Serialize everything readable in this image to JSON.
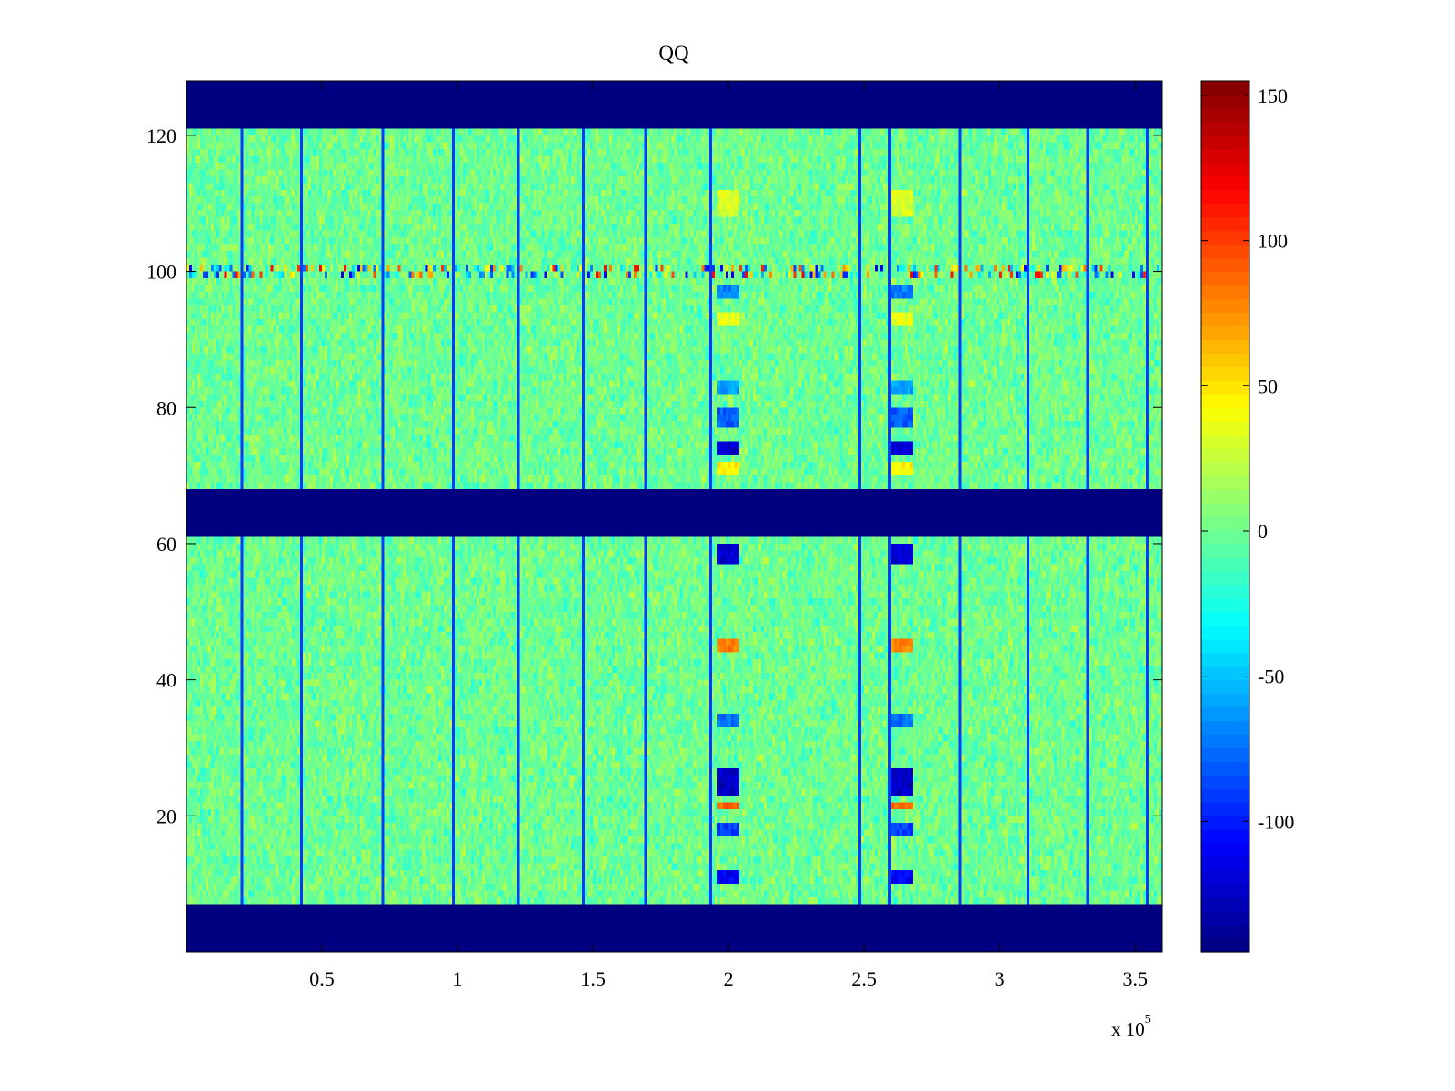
{
  "chart_data": {
    "type": "heatmap",
    "title": "QQ",
    "xlabel": "",
    "ylabel": "",
    "x_multiplier_label": "x 10",
    "x_multiplier_exponent": "5",
    "xlim": [
      0,
      360000
    ],
    "ylim": [
      0,
      128
    ],
    "xticks": [
      0.5,
      1,
      1.5,
      2,
      2.5,
      3,
      3.5
    ],
    "xtick_labels": [
      "0.5",
      "1",
      "1.5",
      "2",
      "2.5",
      "3",
      "3.5"
    ],
    "yticks": [
      20,
      40,
      60,
      80,
      100,
      120
    ],
    "ytick_labels": [
      "20",
      "40",
      "60",
      "80",
      "100",
      "120"
    ],
    "colormap": "jet",
    "clim": [
      -145,
      155
    ],
    "colorbar_ticks": [
      -100,
      -50,
      0,
      50,
      100,
      150
    ],
    "colorbar_tick_labels": [
      "-100",
      "-50",
      "0",
      "50",
      "100",
      "150"
    ],
    "masked_value": -145,
    "masked_row_bands": [
      [
        0,
        7
      ],
      [
        61,
        68
      ],
      [
        121,
        128
      ]
    ],
    "background_range": [
      -30,
      30
    ],
    "vertical_stripe_x": [
      20500,
      42500,
      72500,
      98500,
      122500,
      146000,
      169000,
      193000,
      248000,
      259000,
      285500,
      310000,
      332500,
      354000
    ],
    "vertical_stripe_value": -90,
    "anomaly_columns_x": [
      [
        196000,
        204000
      ],
      [
        260000,
        268000
      ]
    ],
    "anomaly_row_values": [
      {
        "rows": [
          70,
          72
        ],
        "value": 45
      },
      {
        "rows": [
          73,
          75
        ],
        "value": -120
      },
      {
        "rows": [
          77,
          80
        ],
        "value": -80
      },
      {
        "rows": [
          82,
          84
        ],
        "value": -60
      },
      {
        "rows": [
          92,
          94
        ],
        "value": 35
      },
      {
        "rows": [
          96,
          98
        ],
        "value": -70
      },
      {
        "rows": [
          108,
          112
        ],
        "value": 30
      },
      {
        "rows": [
          57,
          60
        ],
        "value": -120
      },
      {
        "rows": [
          44,
          46
        ],
        "value": 80
      },
      {
        "rows": [
          33,
          35
        ],
        "value": -75
      },
      {
        "rows": [
          23,
          27
        ],
        "value": -125
      },
      {
        "rows": [
          21,
          22
        ],
        "value": 90
      },
      {
        "rows": [
          17,
          19
        ],
        "value": -90
      },
      {
        "rows": [
          10,
          12
        ],
        "value": -110
      }
    ],
    "bursty_row": {
      "y": 100,
      "value_range": [
        -120,
        120
      ]
    }
  },
  "colors": {
    "masked": "#00008f",
    "axis": "#000000",
    "background": "#ffffff"
  }
}
